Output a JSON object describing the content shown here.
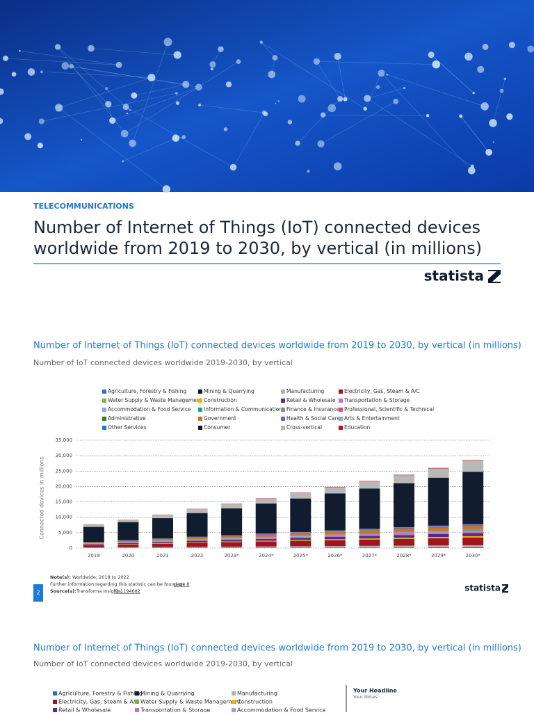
{
  "header": {
    "category": "TELECOMMUNICATIONS",
    "title_line1": "Number of Internet of Things (IoT) connected devices",
    "title_line2": "worldwide from 2019 to 2030, by vertical (in millions)",
    "brand": "statista"
  },
  "chart_data": {
    "type": "stacked-bar",
    "title": "Number of Internet of Things (IoT) connected devices worldwide from 2019 to 2030, by vertical (in millions)",
    "subtitle": "Number of IoT connected devices worldwide 2019-2030, by vertical",
    "y_label": "Connected devices in millions",
    "categories": [
      "2019",
      "2020",
      "2021",
      "2022",
      "2023*",
      "2024*",
      "2025*",
      "2026*",
      "2027*",
      "2028*",
      "2029*",
      "2030*"
    ],
    "ylim": [
      0,
      35000
    ],
    "yticks": [
      0,
      {
        "value": 5000,
        "label": "5,000"
      },
      {
        "value": 10000,
        "label": "10,000"
      },
      {
        "value": 15000,
        "label": "15,000"
      },
      {
        "value": 20000,
        "label": "20,000"
      },
      {
        "value": 25000,
        "label": "25,000"
      },
      {
        "value": 30000,
        "label": "30,000"
      },
      {
        "value": 35000,
        "label": "35,000"
      }
    ],
    "grid": true,
    "series": [
      {
        "name": "Agriculture, Forestry & Fishing",
        "color": "#2b6fce",
        "values": [
          30,
          40,
          50,
          60,
          70,
          80,
          90,
          100,
          110,
          120,
          130,
          140
        ]
      },
      {
        "name": "Mining & Quarrying",
        "color": "#0f1a2e",
        "values": [
          20,
          25,
          30,
          35,
          40,
          45,
          50,
          55,
          60,
          65,
          70,
          75
        ]
      },
      {
        "name": "Manufacturing",
        "color": "#b0b0b0",
        "values": [
          150,
          200,
          250,
          300,
          350,
          400,
          450,
          500,
          550,
          600,
          650,
          700
        ]
      },
      {
        "name": "Electricity, Gas, Steam & A/C",
        "color": "#a3141c",
        "values": [
          700,
          900,
          1100,
          1300,
          1450,
          1600,
          1750,
          1900,
          2050,
          2200,
          2350,
          2500
        ]
      },
      {
        "name": "Water Supply & Waste Management",
        "color": "#7cb342",
        "values": [
          50,
          60,
          70,
          80,
          90,
          100,
          110,
          120,
          130,
          140,
          150,
          160
        ]
      },
      {
        "name": "Construction",
        "color": "#f0b400",
        "values": [
          60,
          80,
          100,
          120,
          140,
          160,
          180,
          200,
          220,
          240,
          260,
          280
        ]
      },
      {
        "name": "Retail & Wholesale",
        "color": "#5c2a7e",
        "values": [
          250,
          320,
          390,
          460,
          530,
          600,
          670,
          740,
          810,
          880,
          950,
          1020
        ]
      },
      {
        "name": "Transportation & Storage",
        "color": "#c46fd0",
        "values": [
          150,
          190,
          230,
          270,
          310,
          350,
          390,
          430,
          470,
          510,
          550,
          590
        ]
      },
      {
        "name": "Accommodation & Food Service",
        "color": "#8aa6e0",
        "values": [
          40,
          50,
          60,
          70,
          80,
          90,
          100,
          110,
          120,
          130,
          140,
          150
        ]
      },
      {
        "name": "Information & Communication",
        "color": "#17a589",
        "values": [
          30,
          40,
          50,
          60,
          70,
          80,
          90,
          100,
          110,
          120,
          130,
          140
        ]
      },
      {
        "name": "Finance & Insurance",
        "color": "#8c8c8c",
        "values": [
          40,
          50,
          60,
          70,
          80,
          90,
          100,
          110,
          120,
          130,
          140,
          150
        ]
      },
      {
        "name": "Professional, Scientific & Technical",
        "color": "#d94f7a",
        "values": [
          30,
          40,
          50,
          60,
          70,
          80,
          90,
          100,
          110,
          120,
          130,
          140
        ]
      },
      {
        "name": "Administrative",
        "color": "#3a7d1e",
        "values": [
          20,
          25,
          30,
          35,
          40,
          45,
          50,
          55,
          60,
          65,
          70,
          75
        ]
      },
      {
        "name": "Government",
        "color": "#c8741a",
        "values": [
          250,
          320,
          390,
          460,
          530,
          600,
          670,
          740,
          810,
          880,
          950,
          1020
        ]
      },
      {
        "name": "Health & Social Care",
        "color": "#7e62a8",
        "values": [
          100,
          130,
          160,
          190,
          220,
          250,
          280,
          310,
          340,
          370,
          400,
          430
        ]
      },
      {
        "name": "Arts & Entertainment",
        "color": "#9aa8c0",
        "values": [
          20,
          25,
          30,
          35,
          40,
          45,
          50,
          55,
          60,
          65,
          70,
          75
        ]
      },
      {
        "name": "Other Services",
        "color": "#1f78d1",
        "values": [
          30,
          40,
          50,
          60,
          70,
          80,
          90,
          100,
          110,
          120,
          130,
          140
        ]
      },
      {
        "name": "Consumer",
        "color": "#111c2e",
        "values": [
          4900,
          5900,
          6600,
          7700,
          8700,
          9800,
          10900,
          12000,
          13100,
          14300,
          15600,
          17000
        ]
      },
      {
        "name": "Cross-vertical",
        "color": "#b8b8b8",
        "values": [
          800,
          700,
          1100,
          1300,
          1450,
          1600,
          1800,
          2000,
          2300,
          2600,
          3000,
          3600
        ]
      },
      {
        "name": "Education",
        "color": "#b0141a",
        "values": [
          50,
          60,
          70,
          80,
          90,
          100,
          110,
          120,
          130,
          140,
          150,
          160
        ]
      }
    ]
  },
  "notes": {
    "note_label": "Note(s):",
    "note": "Worldwide; 2019 to 2022",
    "further": "Further information regarding this statistic can be found on",
    "page_link": "page 8",
    "source_label": "Source(s):",
    "source": "Transforma Insights;",
    "id_link": "ID 1194682"
  },
  "footer": {
    "page_number": "2",
    "brand": "statista"
  },
  "side_box": {
    "headline": "Your Headline",
    "notes": "Your Notes:"
  }
}
